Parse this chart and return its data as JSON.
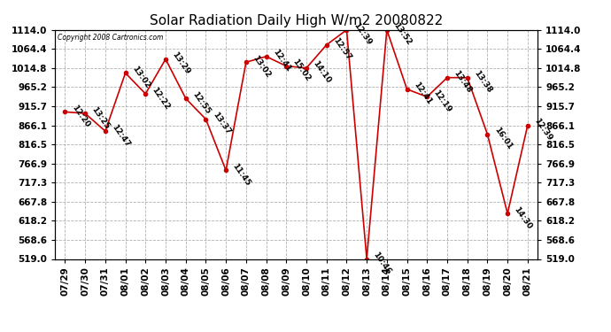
{
  "title": "Solar Radiation Daily High W/m2 20080822",
  "copyright": "Copyright 2008 Cartronics.com",
  "dates": [
    "07/29",
    "07/30",
    "07/31",
    "08/01",
    "08/02",
    "08/03",
    "08/04",
    "08/05",
    "08/06",
    "08/07",
    "08/08",
    "08/09",
    "08/10",
    "08/11",
    "08/12",
    "08/13",
    "08/14",
    "08/15",
    "08/16",
    "08/17",
    "08/18",
    "08/19",
    "08/20",
    "08/21"
  ],
  "values": [
    901,
    897,
    851,
    1002,
    948,
    1038,
    936,
    882,
    749,
    1030,
    1045,
    1020,
    1015,
    1075,
    1114,
    519,
    1114,
    960,
    940,
    990,
    990,
    843,
    637,
    866
  ],
  "labels": [
    "12:20",
    "13:25",
    "12:47",
    "13:02",
    "12:22",
    "13:29",
    "12:55",
    "13:37",
    "11:45",
    "13:02",
    "12:41",
    "15:02",
    "14:10",
    "12:57",
    "12:39",
    "10:46",
    "13:52",
    "12:41",
    "12:19",
    "13:48",
    "13:38",
    "16:01",
    "14:30",
    "12:39"
  ],
  "yticks": [
    519.0,
    568.6,
    618.2,
    667.8,
    717.3,
    766.9,
    816.5,
    866.1,
    915.7,
    965.2,
    1014.8,
    1064.4,
    1114.0
  ],
  "line_color": "#cc0000",
  "marker_color": "#cc0000",
  "bg_color": "#ffffff",
  "grid_color": "#b0b0b0",
  "title_fontsize": 11,
  "label_fontsize": 6.5,
  "axis_fontsize": 7.5
}
